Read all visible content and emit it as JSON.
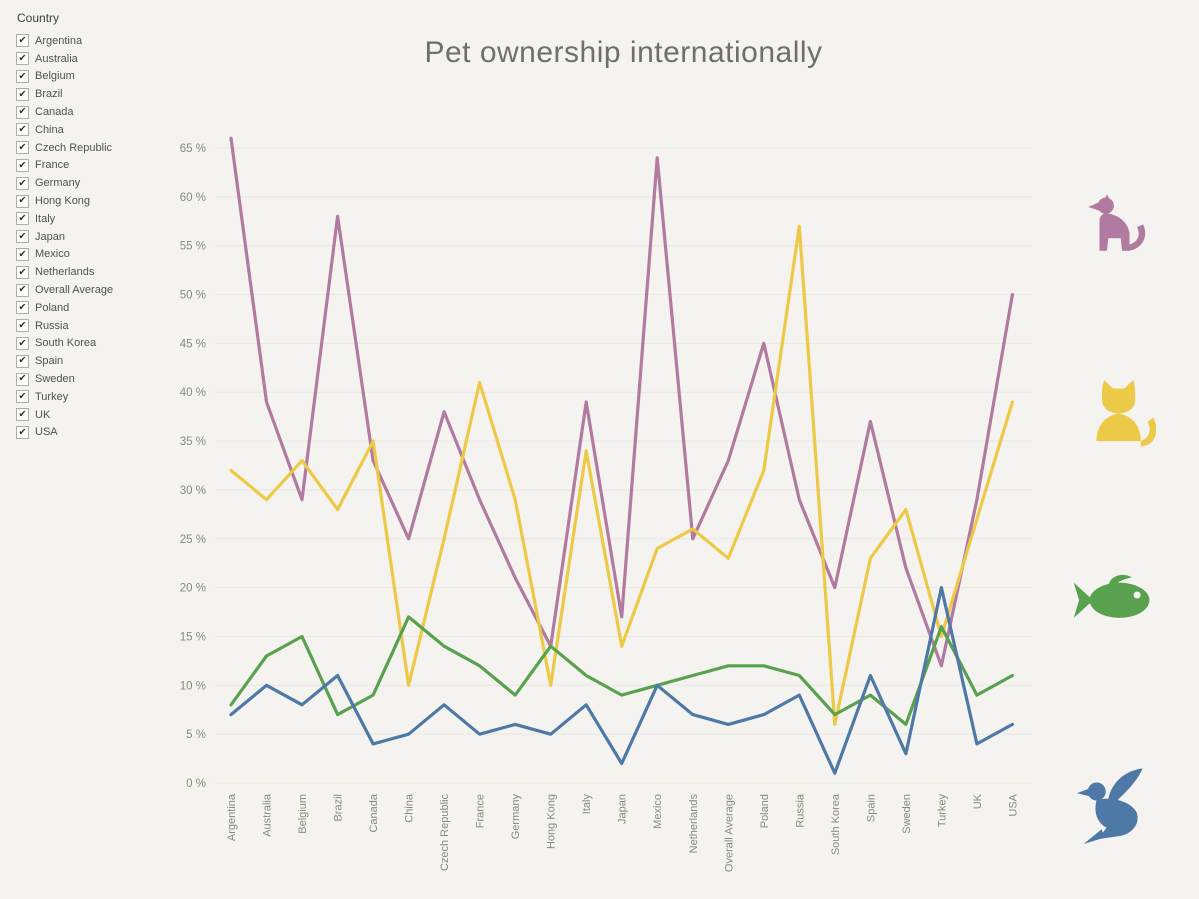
{
  "title": "Pet ownership internationally",
  "filter": {
    "label": "Country",
    "checked_glyph": "✔",
    "items": [
      "Argentina",
      "Australia",
      "Belgium",
      "Brazil",
      "Canada",
      "China",
      "Czech Republic",
      "France",
      "Germany",
      "Hong Kong",
      "Italy",
      "Japan",
      "Mexico",
      "Netherlands",
      "Overall Average",
      "Poland",
      "Russia",
      "South Korea",
      "Spain",
      "Sweden",
      "Turkey",
      "UK",
      "USA"
    ]
  },
  "chart_data": {
    "type": "line",
    "categories": [
      "Argentina",
      "Australia",
      "Belgium",
      "Brazil",
      "Canada",
      "China",
      "Czech Republic",
      "France",
      "Germany",
      "Hong Kong",
      "Italy",
      "Japan",
      "Mexico",
      "Netherlands",
      "Overall Average",
      "Poland",
      "Russia",
      "South Korea",
      "Spain",
      "Sweden",
      "Turkey",
      "UK",
      "USA"
    ],
    "series": [
      {
        "name": "Dog",
        "icon": "dog-icon",
        "color": "#b07aa1",
        "values": [
          66,
          39,
          29,
          58,
          33,
          25,
          38,
          29,
          21,
          14,
          39,
          17,
          64,
          25,
          33,
          45,
          29,
          20,
          37,
          22,
          12,
          29,
          50
        ]
      },
      {
        "name": "Cat",
        "icon": "cat-icon",
        "color": "#edc948",
        "values": [
          32,
          29,
          33,
          28,
          35,
          10,
          25,
          41,
          29,
          10,
          34,
          14,
          24,
          26,
          23,
          32,
          57,
          6,
          23,
          28,
          15,
          27,
          39
        ]
      },
      {
        "name": "Fish",
        "icon": "fish-icon",
        "color": "#59a14f",
        "values": [
          8,
          13,
          15,
          7,
          9,
          17,
          14,
          12,
          9,
          14,
          11,
          9,
          10,
          11,
          12,
          12,
          11,
          7,
          9,
          6,
          16,
          9,
          11
        ]
      },
      {
        "name": "Bird",
        "icon": "bird-icon",
        "color": "#4e79a7",
        "values": [
          7,
          10,
          8,
          11,
          4,
          5,
          8,
          5,
          6,
          5,
          8,
          2,
          10,
          7,
          6,
          7,
          9,
          1,
          11,
          3,
          20,
          4,
          6
        ]
      }
    ],
    "ylim": [
      0,
      65
    ],
    "yticks": [
      0,
      5,
      10,
      15,
      20,
      25,
      30,
      35,
      40,
      45,
      50,
      55,
      60,
      65
    ],
    "ytick_unit": "%",
    "grid": true,
    "legend_position": "right",
    "xlabel": "",
    "ylabel": ""
  },
  "colors": {
    "background": "#f5f3ef",
    "grid": "rgba(110,100,88,0.08)",
    "axis_text": "#8a8781",
    "title_text": "#6f6e6c"
  }
}
